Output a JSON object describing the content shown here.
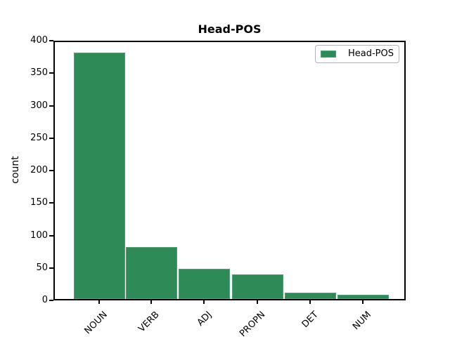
{
  "title": "Head-POS",
  "ylabel": "count",
  "legend": {
    "label": "Head-POS"
  },
  "colors": {
    "bar": "#2e8b57",
    "bar_edge": "#4f9f74",
    "axis": "#000000",
    "legend_border": "#b3b3b3",
    "background": "#ffffff"
  },
  "chart_data": {
    "type": "bar",
    "title": "Head-POS",
    "categories": [
      "NOUN",
      "VERB",
      "ADJ",
      "PROPN",
      "DET",
      "NUM"
    ],
    "values": [
      380,
      80,
      46,
      38,
      10,
      7
    ],
    "xlabel": "",
    "ylabel": "count",
    "ylim": [
      0,
      400
    ],
    "yticks": [
      0,
      50,
      100,
      150,
      200,
      250,
      300,
      350,
      400
    ],
    "xtick_rotation": 45,
    "grid": false,
    "legend": {
      "entries": [
        "Head-POS"
      ],
      "position": "upper right"
    },
    "bar_color": "#2e8b57"
  }
}
